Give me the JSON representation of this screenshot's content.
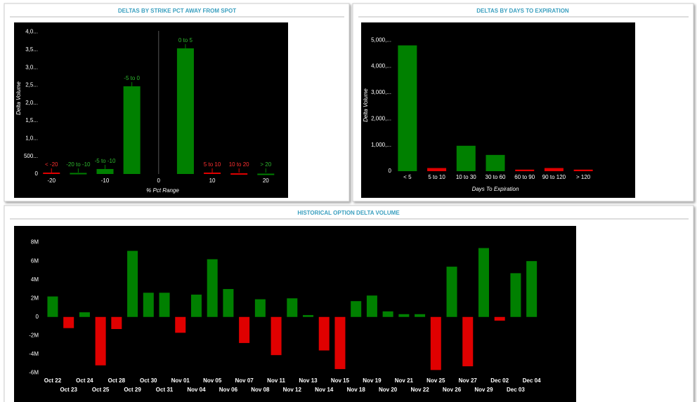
{
  "chart_data": [
    {
      "type": "bar",
      "title": "DELTAS BY STRIKE PCT AWAY FROM SPOT",
      "x_label": "% Pct Range",
      "y_label": "Delta Volume",
      "x": [
        -20,
        -15,
        -10,
        -5,
        5,
        10,
        15,
        20
      ],
      "bar_labels": [
        "< -20",
        "-20 to -10",
        "-5 to -10",
        "-5 to 0",
        "0 to 5",
        "5 to 10",
        "10 to 20",
        "> 20"
      ],
      "values": [
        40,
        30,
        140,
        2470,
        3540,
        40,
        20,
        10
      ],
      "colors": [
        "#e00000",
        "#008000",
        "#008000",
        "#008000",
        "#008000",
        "#e00000",
        "#e00000",
        "#008000"
      ],
      "xlim": [
        -22,
        23.5
      ],
      "xticks": [
        -20,
        -10,
        0,
        10,
        20
      ],
      "x_zero_line": true,
      "ylim": [
        0,
        4150
      ],
      "yticks": [
        0,
        {
          "value": 500,
          "label": "500..."
        },
        {
          "value": 1000,
          "label": "1,0..."
        },
        {
          "value": 1500,
          "label": "1,5..."
        },
        {
          "value": 2000,
          "label": "2,0..."
        },
        {
          "value": 2500,
          "label": "2,5..."
        },
        {
          "value": 3000,
          "label": "3,0..."
        },
        {
          "value": 3500,
          "label": "3,5..."
        },
        {
          "value": 4000,
          "label": "4,0..."
        }
      ]
    },
    {
      "type": "bar",
      "title": "DELTAS BY DAYS TO EXPIRATION",
      "x_label": "Days To Expiration",
      "y_label": "Delta Volume",
      "categories": [
        "< 5",
        "5 to 10",
        "10 to 30",
        "30 to 60",
        "60 to 90",
        "90 to 120",
        "> 120"
      ],
      "values": [
        4800000,
        120000,
        970000,
        620000,
        60000,
        120000,
        60000
      ],
      "colors": [
        "#008000",
        "#e00000",
        "#008000",
        "#008000",
        "#e00000",
        "#e00000",
        "#e00000"
      ],
      "ylim": [
        0,
        5300000
      ],
      "yticks": [
        0,
        {
          "value": 1000000,
          "label": "1,000,..."
        },
        {
          "value": 2000000,
          "label": "2,000,..."
        },
        {
          "value": 3000000,
          "label": "3,000,..."
        },
        {
          "value": 4000000,
          "label": "4,000,..."
        },
        {
          "value": 5000000,
          "label": "5,000,..."
        }
      ]
    },
    {
      "type": "bar",
      "title": "HISTORICAL OPTION DELTA VOLUME",
      "categories": [
        "Oct 22",
        "Oct 23",
        "Oct 24",
        "Oct 25",
        "Oct 28",
        "Oct 29",
        "Oct 30",
        "Oct 31",
        "Nov 01",
        "Nov 04",
        "Nov 05",
        "Nov 06",
        "Nov 07",
        "Nov 08",
        "Nov 11",
        "Nov 12",
        "Nov 13",
        "Nov 14",
        "Nov 15",
        "Nov 18",
        "Nov 19",
        "Nov 20",
        "Nov 21",
        "Nov 22",
        "Nov 25",
        "Nov 26",
        "Nov 27",
        "Nov 29",
        "Dec 02",
        "Dec 03",
        "Dec 04"
      ],
      "values": [
        2.2,
        -1.2,
        0.5,
        -5.2,
        -1.3,
        7.1,
        2.6,
        2.6,
        -1.7,
        2.4,
        6.2,
        3.0,
        -2.8,
        1.9,
        -4.1,
        2.0,
        0.2,
        -3.6,
        -5.6,
        1.7,
        2.3,
        0.6,
        0.3,
        0.3,
        -5.7,
        5.4,
        -5.3,
        7.4,
        -0.4,
        4.7,
        6.0
      ],
      "positive_color": "#008000",
      "negative_color": "#e00000",
      "ylim": [
        -6.8,
        8.8
      ],
      "yticks": [
        {
          "value": -6,
          "label": "-6M"
        },
        {
          "value": -4,
          "label": "-4M"
        },
        {
          "value": -2,
          "label": "-2M"
        },
        0,
        {
          "value": 2,
          "label": "2M"
        },
        {
          "value": 4,
          "label": "4M"
        },
        {
          "value": 6,
          "label": "6M"
        },
        {
          "value": 8,
          "label": "8M"
        }
      ]
    }
  ]
}
